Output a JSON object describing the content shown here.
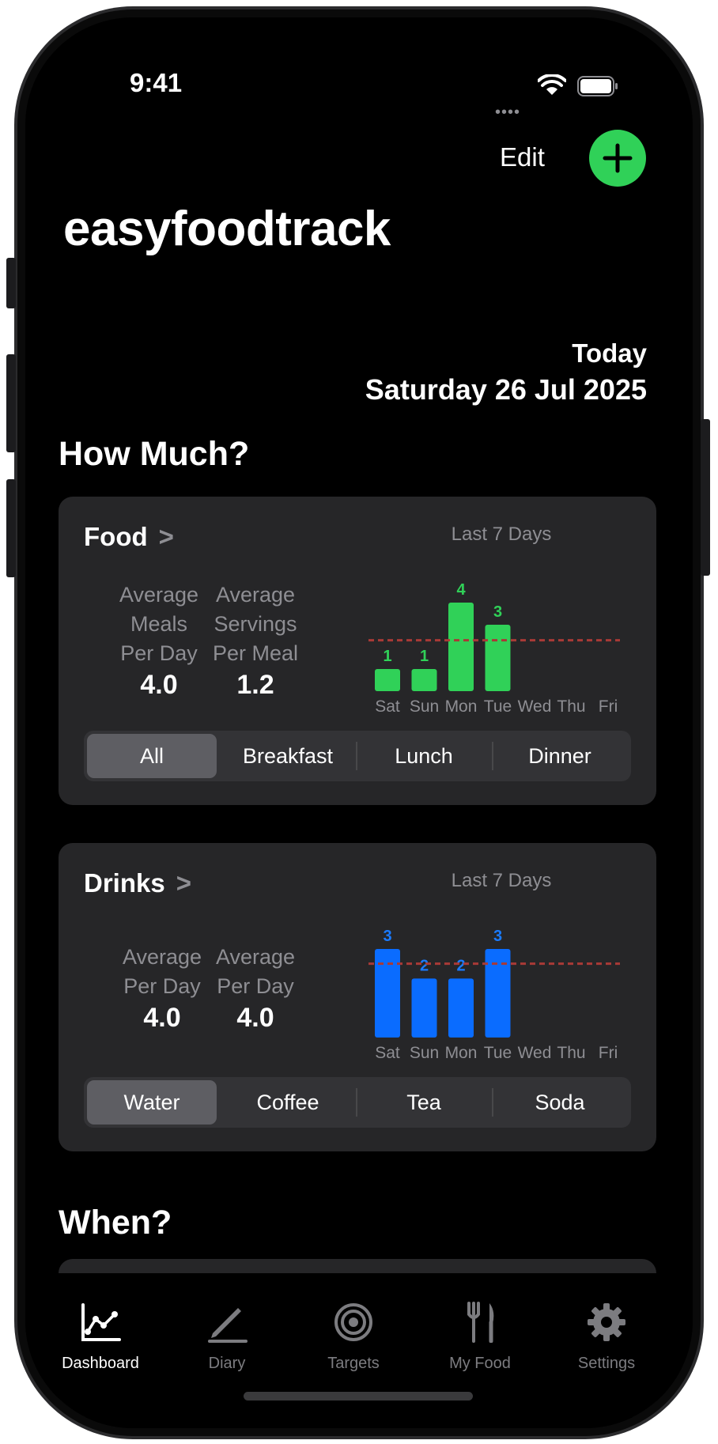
{
  "status": {
    "time": "9:41",
    "dots": "••••"
  },
  "header": {
    "edit_label": "Edit",
    "title": "easyfoodtrack"
  },
  "date": {
    "today": "Today",
    "full": "Saturday 26 Jul 2025"
  },
  "sections": {
    "how_much": "How Much?",
    "when": "When?"
  },
  "food_card": {
    "title": "Food",
    "chevron": ">",
    "caption": "Last 7 Days",
    "stats": [
      {
        "label_lines": [
          "Average",
          "Meals",
          "Per Day"
        ],
        "value": "4.0"
      },
      {
        "label_lines": [
          "Average",
          "Servings",
          "Per Meal"
        ],
        "value": "1.2"
      }
    ],
    "segments": [
      "All",
      "Breakfast",
      "Lunch",
      "Dinner"
    ],
    "selected_segment": 0
  },
  "drinks_card": {
    "title": "Drinks",
    "chevron": ">",
    "caption": "Last 7 Days",
    "stats": [
      {
        "label_lines": [
          "Average",
          "Per Day"
        ],
        "value": "4.0"
      },
      {
        "label_lines": [
          "Average",
          "Per Day"
        ],
        "value": "4.0"
      }
    ],
    "segments": [
      "Water",
      "Coffee",
      "Tea",
      "Soda"
    ],
    "selected_segment": 0
  },
  "chart_data": [
    {
      "type": "bar",
      "categories": [
        "Sat",
        "Sun",
        "Mon",
        "Tue",
        "Wed",
        "Thu",
        "Fri"
      ],
      "values": [
        1,
        1,
        4,
        3,
        null,
        null,
        null
      ],
      "data_labels": [
        "1",
        "1",
        "4",
        "3",
        "",
        "",
        ""
      ],
      "reference_line": 2.3,
      "ylim": [
        0,
        4
      ],
      "title": "Last 7 Days",
      "color": "#30d158",
      "label_color": "#30d158",
      "reference_color": "#a93a36"
    },
    {
      "type": "bar",
      "categories": [
        "Sat",
        "Sun",
        "Mon",
        "Tue",
        "Wed",
        "Thu",
        "Fri"
      ],
      "values": [
        3,
        2,
        2,
        3,
        null,
        null,
        null
      ],
      "data_labels": [
        "3",
        "2",
        "2",
        "3",
        "",
        "",
        ""
      ],
      "reference_line": 2.5,
      "ylim": [
        0,
        3
      ],
      "title": "Last 7 Days",
      "color": "#0a6cff",
      "label_color": "#1a7bff",
      "reference_color": "#a93a36"
    }
  ],
  "tabbar": {
    "items": [
      {
        "label": "Dashboard",
        "icon": "chart-line-icon",
        "active": true
      },
      {
        "label": "Diary",
        "icon": "pencil-icon",
        "active": false
      },
      {
        "label": "Targets",
        "icon": "target-icon",
        "active": false
      },
      {
        "label": "My Food",
        "icon": "fork-knife-icon",
        "active": false
      },
      {
        "label": "Settings",
        "icon": "gear-icon",
        "active": false
      }
    ]
  },
  "colors": {
    "accent_green": "#30d158",
    "accent_blue": "#0a6cff",
    "card_bg": "#262628",
    "inactive_tab": "#7c7c80"
  }
}
